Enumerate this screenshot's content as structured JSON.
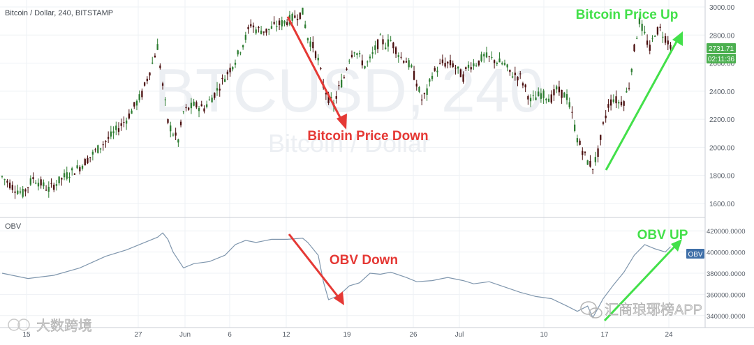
{
  "header": {
    "symbol_title": "Bitcoin / Dollar, 240, BITSTAMP",
    "watermark_main": "BTCUSD, 240",
    "watermark_sub": "Bitcoin / Dollar"
  },
  "obv_panel": {
    "label": "OBV",
    "badge": "OBV"
  },
  "price_badges": {
    "last_price": "2731.71",
    "countdown": "02:11:36"
  },
  "annotations": {
    "price_up": "Bitcoin Price Up",
    "price_down": "Bitcoin Price Down",
    "obv_up": "OBV UP",
    "obv_down": "OBV Down"
  },
  "watermarks": {
    "left": "大数跨境",
    "right": "汇商琅琊榜APP"
  },
  "colors": {
    "up_candle": "#2e7d32",
    "down_candle": "#4a0e0e",
    "obv_line": "#7f96ad",
    "arrow_down": "#e53935",
    "arrow_up": "#43e04a",
    "badge_price": "#4caf50",
    "badge_obv": "#3f6fa8"
  },
  "chart_data": [
    {
      "type": "candlestick",
      "title": "Bitcoin / Dollar, 240, BITSTAMP",
      "x_ticks": [
        "15",
        "27",
        "Jun",
        "6",
        "12",
        "19",
        "26",
        "Jul",
        "10",
        "17",
        "24"
      ],
      "ylim": [
        1520,
        3030
      ],
      "y_ticks": [
        1600,
        1800,
        2000,
        2200,
        2400,
        2600,
        2800,
        3000
      ],
      "y_tick_labels": [
        "1600.00",
        "1800.00",
        "2000.00",
        "2200.00",
        "2400.00",
        "2600.00",
        "2800.00",
        "3000.00"
      ],
      "grid": true,
      "path": [
        [
          0,
          1790
        ],
        [
          4,
          1720
        ],
        [
          8,
          1670
        ],
        [
          12,
          1780
        ],
        [
          18,
          1700
        ],
        [
          24,
          1790
        ],
        [
          30,
          1860
        ],
        [
          36,
          1970
        ],
        [
          42,
          2080
        ],
        [
          48,
          2200
        ],
        [
          54,
          2380
        ],
        [
          58,
          2600
        ],
        [
          60,
          2720
        ],
        [
          62,
          2440
        ],
        [
          64,
          2180
        ],
        [
          66,
          2100
        ],
        [
          68,
          2050
        ],
        [
          70,
          2250
        ],
        [
          74,
          2300
        ],
        [
          78,
          2280
        ],
        [
          82,
          2380
        ],
        [
          86,
          2500
        ],
        [
          90,
          2620
        ],
        [
          94,
          2780
        ],
        [
          96,
          2880
        ],
        [
          98,
          2840
        ],
        [
          102,
          2830
        ],
        [
          106,
          2870
        ],
        [
          110,
          2900
        ],
        [
          114,
          2940
        ],
        [
          116,
          2960
        ],
        [
          118,
          2780
        ],
        [
          120,
          2720
        ],
        [
          122,
          2620
        ],
        [
          124,
          2440
        ],
        [
          126,
          2350
        ],
        [
          128,
          2300
        ],
        [
          130,
          2420
        ],
        [
          132,
          2500
        ],
        [
          134,
          2640
        ],
        [
          136,
          2700
        ],
        [
          138,
          2640
        ],
        [
          140,
          2580
        ],
        [
          142,
          2620
        ],
        [
          144,
          2700
        ],
        [
          146,
          2770
        ],
        [
          148,
          2730
        ],
        [
          150,
          2760
        ],
        [
          152,
          2700
        ],
        [
          154,
          2640
        ],
        [
          156,
          2620
        ],
        [
          158,
          2560
        ],
        [
          160,
          2460
        ],
        [
          162,
          2340
        ],
        [
          164,
          2390
        ],
        [
          166,
          2520
        ],
        [
          170,
          2600
        ],
        [
          174,
          2590
        ],
        [
          178,
          2500
        ],
        [
          180,
          2580
        ],
        [
          184,
          2610
        ],
        [
          186,
          2650
        ],
        [
          190,
          2620
        ],
        [
          194,
          2590
        ],
        [
          196,
          2530
        ],
        [
          200,
          2500
        ],
        [
          202,
          2420
        ],
        [
          204,
          2330
        ],
        [
          208,
          2380
        ],
        [
          212,
          2350
        ],
        [
          214,
          2410
        ],
        [
          218,
          2360
        ],
        [
          220,
          2230
        ],
        [
          222,
          2060
        ],
        [
          224,
          1980
        ],
        [
          226,
          1900
        ],
        [
          228,
          1860
        ],
        [
          230,
          1960
        ],
        [
          232,
          2150
        ],
        [
          234,
          2300
        ],
        [
          236,
          2350
        ],
        [
          238,
          2320
        ],
        [
          240,
          2330
        ],
        [
          242,
          2440
        ],
        [
          244,
          2700
        ],
        [
          246,
          2900
        ],
        [
          248,
          2800
        ],
        [
          250,
          2700
        ],
        [
          252,
          2820
        ],
        [
          254,
          2840
        ],
        [
          256,
          2780
        ],
        [
          258,
          2731
        ]
      ]
    },
    {
      "type": "line",
      "title": "OBV",
      "series": [
        {
          "name": "OBV",
          "path": [
            [
              0,
              380000
            ],
            [
              10,
              375000
            ],
            [
              20,
              378000
            ],
            [
              30,
              385000
            ],
            [
              40,
              396000
            ],
            [
              48,
              402000
            ],
            [
              54,
              408000
            ],
            [
              60,
              414000
            ],
            [
              62,
              418000
            ],
            [
              64,
              412000
            ],
            [
              66,
              400000
            ],
            [
              70,
              385000
            ],
            [
              74,
              389000
            ],
            [
              80,
              391000
            ],
            [
              86,
              397000
            ],
            [
              90,
              407000
            ],
            [
              94,
              411000
            ],
            [
              98,
              409000
            ],
            [
              104,
              412000
            ],
            [
              110,
              412000
            ],
            [
              116,
              413000
            ],
            [
              118,
              409000
            ],
            [
              122,
              397000
            ],
            [
              124,
              372000
            ],
            [
              126,
              355000
            ],
            [
              130,
              359000
            ],
            [
              134,
              368000
            ],
            [
              138,
              371000
            ],
            [
              142,
              380000
            ],
            [
              146,
              379000
            ],
            [
              150,
              381000
            ],
            [
              156,
              376000
            ],
            [
              160,
              372000
            ],
            [
              166,
              373000
            ],
            [
              172,
              376000
            ],
            [
              178,
              373000
            ],
            [
              182,
              370000
            ],
            [
              188,
              372000
            ],
            [
              194,
              367000
            ],
            [
              200,
              362000
            ],
            [
              206,
              358000
            ],
            [
              212,
              356000
            ],
            [
              218,
              349000
            ],
            [
              222,
              344000
            ],
            [
              226,
              349000
            ],
            [
              228,
              338000
            ],
            [
              232,
              356000
            ],
            [
              236,
              369000
            ],
            [
              240,
              381000
            ],
            [
              244,
              397000
            ],
            [
              248,
              407000
            ],
            [
              252,
              403000
            ],
            [
              256,
              400000
            ],
            [
              258,
              405000
            ]
          ]
        }
      ],
      "ylim": [
        330000,
        430000
      ],
      "y_ticks": [
        340000,
        360000,
        380000,
        400000,
        420000
      ],
      "y_tick_labels": [
        "340000.0000",
        "360000.0000",
        "380000.0000",
        "400000.0000",
        "420000.0000"
      ],
      "grid": true
    }
  ]
}
